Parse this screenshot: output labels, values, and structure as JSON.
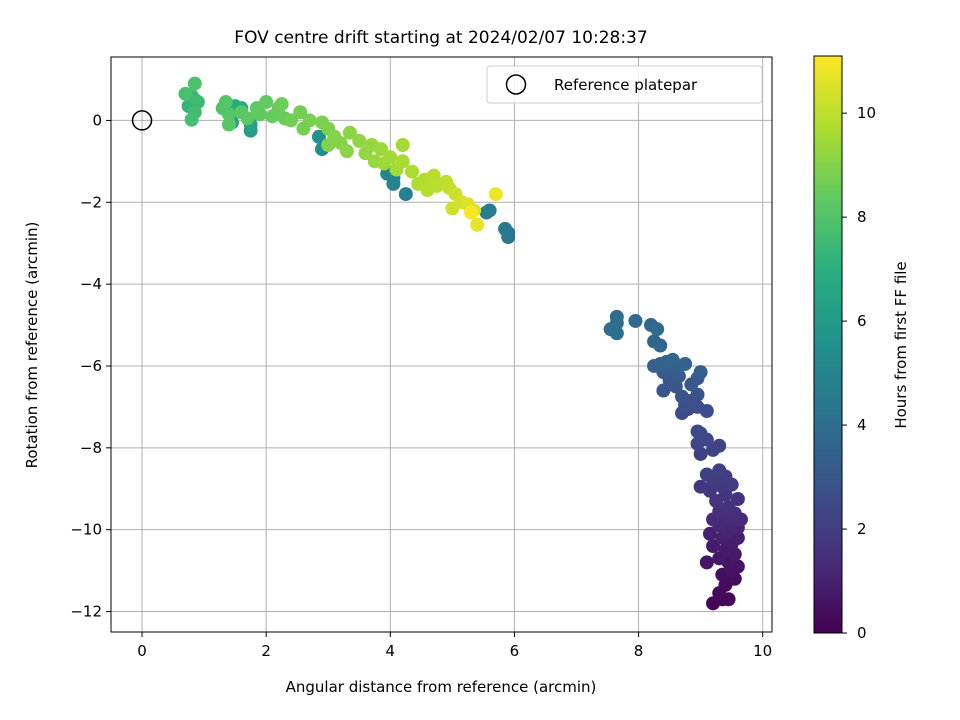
{
  "chart_data": {
    "type": "scatter",
    "title": "FOV centre drift starting at 2024/02/07 10:28:37",
    "xlabel": "Angular distance from reference (arcmin)",
    "ylabel": "Rotation from reference (arcmin)",
    "xlim": [
      -0.5,
      10.15
    ],
    "ylim": [
      -12.5,
      1.55
    ],
    "xticks": [
      0,
      2,
      4,
      6,
      8,
      10
    ],
    "yticks": [
      0,
      -2,
      -4,
      -6,
      -8,
      -10,
      -12
    ],
    "xtick_labels": [
      "0",
      "2",
      "4",
      "6",
      "8",
      "10"
    ],
    "ytick_labels": [
      "0",
      "−2",
      "−4",
      "−6",
      "−8",
      "−10",
      "−12"
    ],
    "grid": true,
    "legend": {
      "position": "top-right",
      "label": "Reference platepar"
    },
    "reference_point": {
      "x": 0,
      "y": 0
    },
    "colorbar": {
      "label": "Hours from first FF file",
      "colormap": "viridis",
      "min": 0,
      "max": 11.1,
      "ticks": [
        0,
        2,
        4,
        6,
        8,
        10
      ],
      "tick_labels": [
        "0",
        "2",
        "4",
        "6",
        "8",
        "10"
      ]
    },
    "series": [
      {
        "points": [
          {
            "x": 9.2,
            "y": -11.8,
            "h": 0.1
          },
          {
            "x": 9.35,
            "y": -11.7,
            "h": 0.15
          },
          {
            "x": 9.45,
            "y": -11.7,
            "h": 0.2
          },
          {
            "x": 9.3,
            "y": -11.55,
            "h": 0.3
          },
          {
            "x": 9.4,
            "y": -11.35,
            "h": 0.35
          },
          {
            "x": 9.55,
            "y": -11.2,
            "h": 0.4
          },
          {
            "x": 9.35,
            "y": -11.1,
            "h": 0.45
          },
          {
            "x": 9.5,
            "y": -11.0,
            "h": 0.5
          },
          {
            "x": 9.6,
            "y": -10.9,
            "h": 0.55
          },
          {
            "x": 9.45,
            "y": -10.8,
            "h": 0.6
          },
          {
            "x": 9.1,
            "y": -10.8,
            "h": 0.65
          },
          {
            "x": 9.3,
            "y": -10.7,
            "h": 0.7
          },
          {
            "x": 9.55,
            "y": -10.6,
            "h": 0.75
          },
          {
            "x": 9.4,
            "y": -10.5,
            "h": 0.8
          },
          {
            "x": 9.2,
            "y": -10.4,
            "h": 0.85
          },
          {
            "x": 9.5,
            "y": -10.35,
            "h": 0.9
          },
          {
            "x": 9.6,
            "y": -10.2,
            "h": 0.95
          },
          {
            "x": 9.35,
            "y": -10.2,
            "h": 1.0
          },
          {
            "x": 9.15,
            "y": -10.1,
            "h": 1.05
          },
          {
            "x": 9.45,
            "y": -10.05,
            "h": 1.1
          },
          {
            "x": 9.6,
            "y": -9.95,
            "h": 1.15
          },
          {
            "x": 9.3,
            "y": -9.9,
            "h": 1.2
          },
          {
            "x": 9.5,
            "y": -9.8,
            "h": 1.25
          },
          {
            "x": 9.65,
            "y": -9.75,
            "h": 1.3
          },
          {
            "x": 9.2,
            "y": -9.75,
            "h": 1.35
          },
          {
            "x": 9.4,
            "y": -9.65,
            "h": 1.4
          },
          {
            "x": 9.55,
            "y": -9.6,
            "h": 1.45
          },
          {
            "x": 9.3,
            "y": -9.55,
            "h": 1.5
          },
          {
            "x": 9.45,
            "y": -9.45,
            "h": 1.55
          },
          {
            "x": 9.6,
            "y": -9.25,
            "h": 1.6
          },
          {
            "x": 9.25,
            "y": -9.3,
            "h": 1.65
          },
          {
            "x": 9.4,
            "y": -9.15,
            "h": 1.7
          },
          {
            "x": 9.15,
            "y": -9.05,
            "h": 1.75
          },
          {
            "x": 9.0,
            "y": -8.95,
            "h": 1.8
          },
          {
            "x": 9.35,
            "y": -8.95,
            "h": 1.85
          },
          {
            "x": 9.5,
            "y": -8.9,
            "h": 1.9
          },
          {
            "x": 9.2,
            "y": -8.8,
            "h": 1.95
          },
          {
            "x": 9.4,
            "y": -8.7,
            "h": 2.0
          },
          {
            "x": 9.1,
            "y": -8.65,
            "h": 2.05
          },
          {
            "x": 9.3,
            "y": -8.55,
            "h": 2.1
          },
          {
            "x": 9.0,
            "y": -8.15,
            "h": 2.15
          },
          {
            "x": 9.2,
            "y": -8.05,
            "h": 2.2
          },
          {
            "x": 9.3,
            "y": -7.95,
            "h": 2.25
          },
          {
            "x": 8.95,
            "y": -7.9,
            "h": 2.3
          },
          {
            "x": 9.1,
            "y": -7.8,
            "h": 2.35
          },
          {
            "x": 9.0,
            "y": -7.65,
            "h": 2.4
          },
          {
            "x": 8.95,
            "y": -7.6,
            "h": 2.45
          },
          {
            "x": 8.7,
            "y": -7.15,
            "h": 2.5
          },
          {
            "x": 8.8,
            "y": -7.05,
            "h": 2.55
          },
          {
            "x": 9.1,
            "y": -7.1,
            "h": 2.6
          },
          {
            "x": 8.95,
            "y": -7.0,
            "h": 2.65
          },
          {
            "x": 8.75,
            "y": -6.95,
            "h": 2.7
          },
          {
            "x": 8.85,
            "y": -6.85,
            "h": 2.75
          },
          {
            "x": 8.7,
            "y": -6.75,
            "h": 2.8
          },
          {
            "x": 8.95,
            "y": -6.7,
            "h": 2.85
          },
          {
            "x": 8.4,
            "y": -6.6,
            "h": 2.9
          },
          {
            "x": 8.6,
            "y": -6.5,
            "h": 2.95
          },
          {
            "x": 8.85,
            "y": -6.45,
            "h": 3.0
          },
          {
            "x": 8.5,
            "y": -6.35,
            "h": 3.05
          },
          {
            "x": 8.95,
            "y": -6.3,
            "h": 3.1
          },
          {
            "x": 8.65,
            "y": -6.25,
            "h": 3.15
          },
          {
            "x": 8.4,
            "y": -6.15,
            "h": 3.2
          },
          {
            "x": 9.0,
            "y": -6.15,
            "h": 3.25
          },
          {
            "x": 8.5,
            "y": -6.05,
            "h": 3.3
          },
          {
            "x": 8.25,
            "y": -6.0,
            "h": 3.35
          },
          {
            "x": 8.65,
            "y": -6.0,
            "h": 3.4
          },
          {
            "x": 8.35,
            "y": -5.95,
            "h": 3.45
          },
          {
            "x": 8.75,
            "y": -5.95,
            "h": 3.5
          },
          {
            "x": 8.45,
            "y": -5.9,
            "h": 3.55
          },
          {
            "x": 8.55,
            "y": -5.85,
            "h": 3.6
          },
          {
            "x": 8.35,
            "y": -5.5,
            "h": 3.65
          },
          {
            "x": 8.25,
            "y": -5.4,
            "h": 3.7
          },
          {
            "x": 8.2,
            "y": -5.0,
            "h": 3.75
          },
          {
            "x": 8.3,
            "y": -5.1,
            "h": 3.8
          },
          {
            "x": 7.95,
            "y": -4.9,
            "h": 3.85
          },
          {
            "x": 7.65,
            "y": -4.8,
            "h": 3.9
          },
          {
            "x": 7.65,
            "y": -4.95,
            "h": 3.95
          },
          {
            "x": 7.55,
            "y": -5.1,
            "h": 4.0
          },
          {
            "x": 7.65,
            "y": -5.2,
            "h": 4.05
          },
          {
            "x": 5.9,
            "y": -2.75,
            "h": 4.3
          },
          {
            "x": 5.9,
            "y": -2.85,
            "h": 4.4
          },
          {
            "x": 5.85,
            "y": -2.65,
            "h": 4.5
          },
          {
            "x": 5.6,
            "y": -2.2,
            "h": 4.6
          },
          {
            "x": 5.55,
            "y": -2.25,
            "h": 4.7
          },
          {
            "x": 4.25,
            "y": -1.8,
            "h": 4.8
          },
          {
            "x": 4.05,
            "y": -1.55,
            "h": 4.9
          },
          {
            "x": 4.05,
            "y": -1.4,
            "h": 5.0
          },
          {
            "x": 3.95,
            "y": -1.3,
            "h": 5.1
          },
          {
            "x": 2.9,
            "y": -0.7,
            "h": 5.4
          },
          {
            "x": 2.85,
            "y": -0.4,
            "h": 5.6
          },
          {
            "x": 1.75,
            "y": -0.25,
            "h": 6.1
          },
          {
            "x": 1.75,
            "y": -0.1,
            "h": 6.3
          },
          {
            "x": 1.45,
            "y": -0.05,
            "h": 6.5
          },
          {
            "x": 1.5,
            "y": 0.35,
            "h": 6.7
          },
          {
            "x": 1.6,
            "y": 0.3,
            "h": 6.9
          },
          {
            "x": 0.85,
            "y": 0.5,
            "h": 7.1
          },
          {
            "x": 0.75,
            "y": 0.35,
            "h": 7.25
          },
          {
            "x": 0.8,
            "y": 0.6,
            "h": 7.4
          },
          {
            "x": 0.9,
            "y": 0.45,
            "h": 7.5
          },
          {
            "x": 0.85,
            "y": 0.2,
            "h": 7.6
          },
          {
            "x": 0.8,
            "y": 0.02,
            "h": 7.7
          },
          {
            "x": 0.7,
            "y": 0.65,
            "h": 7.8
          },
          {
            "x": 0.85,
            "y": 0.9,
            "h": 7.9
          },
          {
            "x": 1.3,
            "y": 0.3,
            "h": 8.0
          },
          {
            "x": 1.4,
            "y": 0.15,
            "h": 8.05
          },
          {
            "x": 1.35,
            "y": 0.45,
            "h": 8.1
          },
          {
            "x": 1.4,
            "y": -0.1,
            "h": 8.15
          },
          {
            "x": 1.6,
            "y": 0.2,
            "h": 8.2
          },
          {
            "x": 1.7,
            "y": 0.05,
            "h": 8.25
          },
          {
            "x": 1.85,
            "y": 0.3,
            "h": 8.3
          },
          {
            "x": 1.9,
            "y": 0.15,
            "h": 8.35
          },
          {
            "x": 2.0,
            "y": 0.45,
            "h": 8.4
          },
          {
            "x": 2.1,
            "y": 0.1,
            "h": 8.45
          },
          {
            "x": 2.2,
            "y": 0.3,
            "h": 8.5
          },
          {
            "x": 2.3,
            "y": 0.05,
            "h": 8.55
          },
          {
            "x": 2.25,
            "y": 0.4,
            "h": 8.6
          },
          {
            "x": 2.4,
            "y": 0.0,
            "h": 8.65
          },
          {
            "x": 2.55,
            "y": 0.2,
            "h": 8.7
          },
          {
            "x": 2.6,
            "y": -0.2,
            "h": 8.75
          },
          {
            "x": 2.7,
            "y": 0.0,
            "h": 8.8
          },
          {
            "x": 2.9,
            "y": -0.05,
            "h": 8.85
          },
          {
            "x": 3.0,
            "y": -0.2,
            "h": 8.9
          },
          {
            "x": 3.1,
            "y": -0.4,
            "h": 8.95
          },
          {
            "x": 3.0,
            "y": -0.6,
            "h": 9.0
          },
          {
            "x": 3.2,
            "y": -0.55,
            "h": 9.05
          },
          {
            "x": 3.3,
            "y": -0.75,
            "h": 9.1
          },
          {
            "x": 3.35,
            "y": -0.3,
            "h": 9.15
          },
          {
            "x": 3.5,
            "y": -0.5,
            "h": 9.2
          },
          {
            "x": 3.6,
            "y": -0.8,
            "h": 9.25
          },
          {
            "x": 3.7,
            "y": -0.6,
            "h": 9.3
          },
          {
            "x": 3.75,
            "y": -1.0,
            "h": 9.35
          },
          {
            "x": 3.85,
            "y": -0.7,
            "h": 9.4
          },
          {
            "x": 3.9,
            "y": -1.05,
            "h": 9.45
          },
          {
            "x": 4.0,
            "y": -0.9,
            "h": 9.5
          },
          {
            "x": 4.1,
            "y": -1.2,
            "h": 9.55
          },
          {
            "x": 4.2,
            "y": -0.6,
            "h": 9.6
          },
          {
            "x": 4.2,
            "y": -1.0,
            "h": 9.65
          },
          {
            "x": 4.35,
            "y": -1.25,
            "h": 9.7
          },
          {
            "x": 4.45,
            "y": -1.55,
            "h": 9.75
          },
          {
            "x": 4.55,
            "y": -1.45,
            "h": 9.8
          },
          {
            "x": 4.6,
            "y": -1.7,
            "h": 9.85
          },
          {
            "x": 4.7,
            "y": -1.35,
            "h": 9.9
          },
          {
            "x": 4.75,
            "y": -1.6,
            "h": 9.95
          },
          {
            "x": 4.9,
            "y": -1.5,
            "h": 10.0
          },
          {
            "x": 4.95,
            "y": -1.65,
            "h": 10.1
          },
          {
            "x": 5.05,
            "y": -1.8,
            "h": 10.2
          },
          {
            "x": 5.0,
            "y": -2.15,
            "h": 10.3
          },
          {
            "x": 5.15,
            "y": -2.0,
            "h": 10.4
          },
          {
            "x": 5.25,
            "y": -2.05,
            "h": 10.5
          },
          {
            "x": 5.35,
            "y": -2.2,
            "h": 10.6
          },
          {
            "x": 5.4,
            "y": -2.55,
            "h": 10.7
          },
          {
            "x": 5.7,
            "y": -1.8,
            "h": 10.85
          },
          {
            "x": 5.3,
            "y": -2.25,
            "h": 11.0
          }
        ]
      }
    ]
  }
}
